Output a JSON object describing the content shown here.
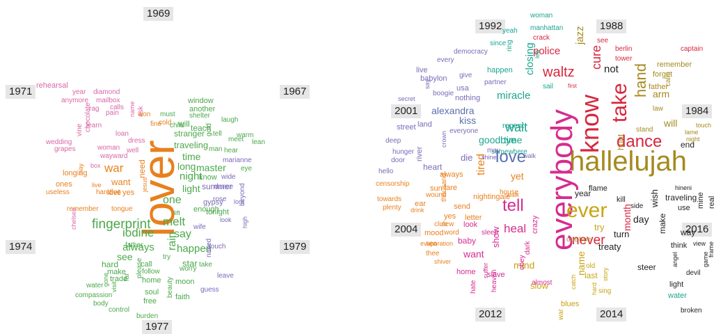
{
  "colors": {
    "green": "#4aa84a",
    "orange": "#e8801e",
    "purple": "#7a6ab8",
    "pink": "#d966a8",
    "magenta": "#d62c8f",
    "red": "#d7263d",
    "teal": "#1aa58f",
    "gold": "#c9a313",
    "olive": "#a58a1f",
    "black": "#222222",
    "blue": "#5a6fb0",
    "label_bg": "#e6e6e6"
  },
  "left_cloud": {
    "years": [
      "1969",
      "1967",
      "1971",
      "1974",
      "1979",
      "1977"
    ],
    "words": [
      "lover",
      "fingerprint",
      "war",
      "melt",
      "one",
      "iodine",
      "say",
      "rain",
      "happen",
      "light",
      "night",
      "time",
      "long",
      "master",
      "always",
      "see",
      "star",
      "want",
      "let",
      "need",
      "traveling",
      "teach",
      "stranger",
      "will",
      "know",
      "summer",
      "tonight",
      "enough",
      "gypsy",
      "wife",
      "window",
      "another",
      "shelter",
      "laugh",
      "tell",
      "meet",
      "warm",
      "hear",
      "man",
      "marianne",
      "gold",
      "eye",
      "lean",
      "wide",
      "rose",
      "dance",
      "beyond",
      "lord",
      "high",
      "look",
      "touch",
      "naked",
      "leave",
      "guess",
      "faith",
      "moon",
      "soul",
      "free",
      "beauty",
      "worry",
      "take",
      "try",
      "home",
      "follow",
      "call",
      "please",
      "trade",
      "far",
      "make",
      "hard",
      "water",
      "compassion",
      "body",
      "control",
      "burden",
      "father",
      "lift",
      "rehearsal",
      "year",
      "diamond",
      "anymore",
      "mailbox",
      "calls",
      "rag",
      "pain",
      "ask",
      "loan",
      "woman",
      "wayward",
      "well",
      "dress",
      "wedding",
      "grapes",
      "vine",
      "chocolate",
      "learn",
      "box",
      "longing",
      "ones",
      "useless",
      "may",
      "live",
      "hand",
      "remember",
      "tongue",
      "love",
      "yes",
      "won",
      "fine",
      "cold",
      "must",
      "child",
      "name",
      "jesus",
      "chelsea",
      "visit",
      "gone"
    ]
  },
  "right_cloud": {
    "years": [
      "1992",
      "1988",
      "2001",
      "1984",
      "2004",
      "2016",
      "2012",
      "2014"
    ],
    "words": [
      "hallelujah",
      "everybody",
      "know",
      "take",
      "ever",
      "love",
      "tell",
      "dance",
      "waltz",
      "heal",
      "never",
      "hand",
      "wait",
      "police",
      "cure",
      "jazz",
      "miracle",
      "closing",
      "goodbye",
      "alexandra",
      "kiss",
      "yet",
      "time",
      "month",
      "will",
      "day",
      "end",
      "arm",
      "not",
      "mind",
      "slow",
      "name",
      "want",
      "show",
      "tired",
      "baby",
      "treaty",
      "flame",
      "year",
      "try",
      "turn",
      "wish",
      "steer",
      "light",
      "water",
      "broken",
      "traveling",
      "make",
      "think",
      "way",
      "use",
      "view",
      "frame",
      "devil",
      "game",
      "angel",
      "mine",
      "real",
      "hineni",
      "lame",
      "night",
      "touch",
      "calm",
      "captain",
      "remember",
      "forget",
      "father",
      "law",
      "stand",
      "hunt",
      "side",
      "kill",
      "one",
      "true",
      "old",
      "story",
      "last",
      "sing",
      "hard",
      "blues",
      "catch",
      "war",
      "almost",
      "obey",
      "crazy",
      "dark",
      "slave",
      "home",
      "hate",
      "suffer",
      "heaven",
      "sleep",
      "look",
      "yes",
      "letter",
      "send",
      "nightingale",
      "house",
      "walk",
      "fare",
      "wound",
      "sun",
      "drink",
      "ear",
      "club",
      "new",
      "mood",
      "sea",
      "word",
      "thee",
      "shiver",
      "evaporation",
      "censorship",
      "towards",
      "plenty",
      "hello",
      "door",
      "hunger",
      "deep",
      "street",
      "land",
      "everyone",
      "heart",
      "die",
      "shine",
      "somewhere",
      "always",
      "thousand",
      "river",
      "crown",
      "secret",
      "say",
      "babylon",
      "live",
      "boogie",
      "nothing",
      "usa",
      "give",
      "happen",
      "repent",
      "every",
      "partner",
      "democracy",
      "since",
      "ring",
      "crack",
      "manhattan",
      "woman",
      "yeah",
      "left",
      "sail",
      "first",
      "berlin",
      "see",
      "tower",
      "walk",
      "may"
    ]
  }
}
